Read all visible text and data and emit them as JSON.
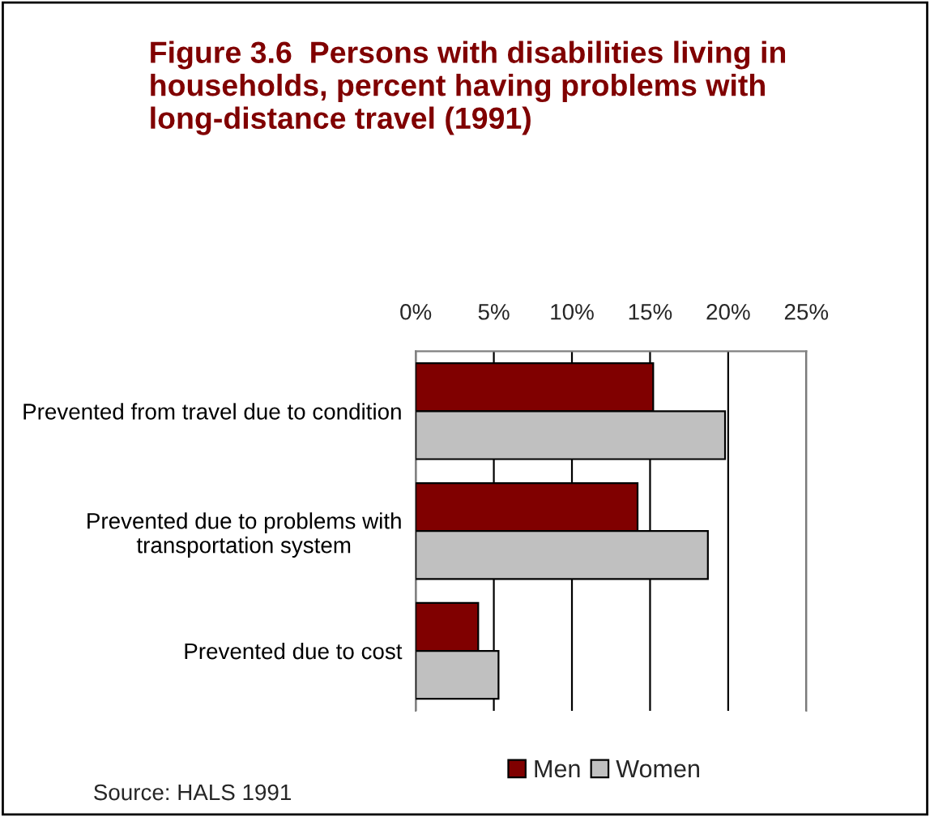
{
  "chart_data": {
    "type": "bar",
    "orientation": "horizontal",
    "title": "Figure 3.6  Persons with disabilities living in households, percent having problems with long-distance travel (1991)",
    "categories": [
      "Prevented from travel due to condition",
      "Prevented due to problems with\ntransportation system",
      "Prevented due to cost"
    ],
    "series": [
      {
        "name": "Men",
        "color": "#800000",
        "values": [
          15.2,
          14.2,
          4.0
        ]
      },
      {
        "name": "Women",
        "color": "#c0c0c0",
        "values": [
          19.8,
          18.7,
          5.3
        ]
      }
    ],
    "xlim": [
      0,
      25
    ],
    "xticks": [
      {
        "value": 0,
        "label": "0%"
      },
      {
        "value": 5,
        "label": "5%"
      },
      {
        "value": 10,
        "label": "10%"
      },
      {
        "value": 15,
        "label": "15%"
      },
      {
        "value": 20,
        "label": "20%"
      },
      {
        "value": 25,
        "label": "25%"
      }
    ],
    "grid": "x",
    "legend": "bottom",
    "annotations": [
      "Source: HALS 1991"
    ]
  }
}
